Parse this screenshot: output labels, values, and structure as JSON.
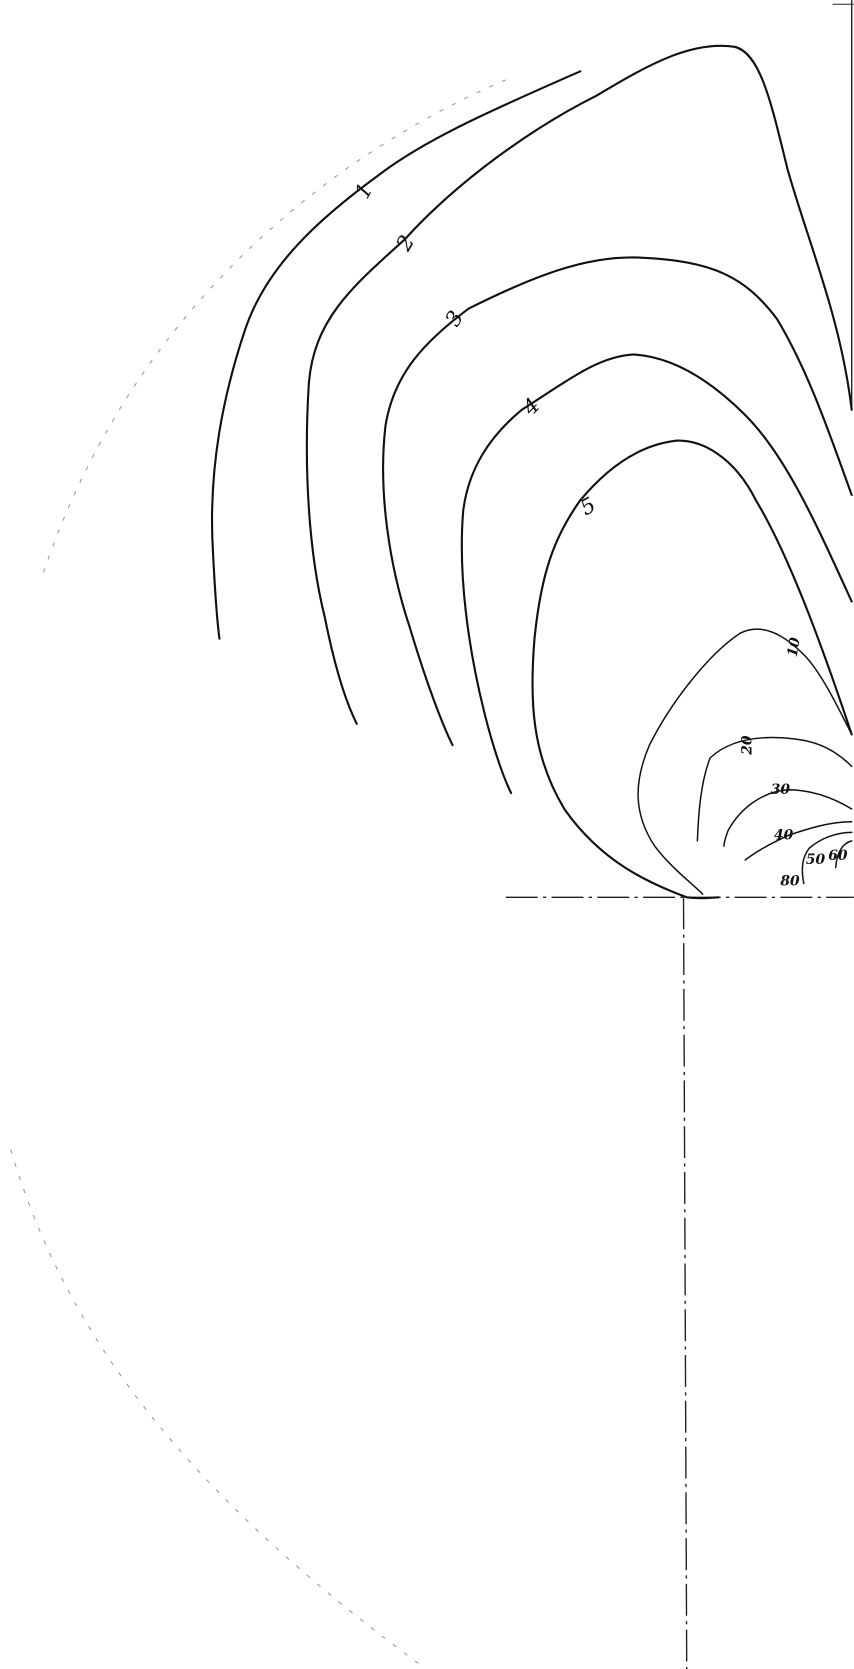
{
  "contours": [
    {
      "label": "1"
    },
    {
      "label": "2"
    },
    {
      "label": "3"
    },
    {
      "label": "4"
    },
    {
      "label": "5"
    },
    {
      "label": "10"
    },
    {
      "label": "20"
    },
    {
      "label": "30"
    },
    {
      "label": "40"
    },
    {
      "label": "50"
    },
    {
      "label": "60"
    },
    {
      "label": "80"
    }
  ]
}
